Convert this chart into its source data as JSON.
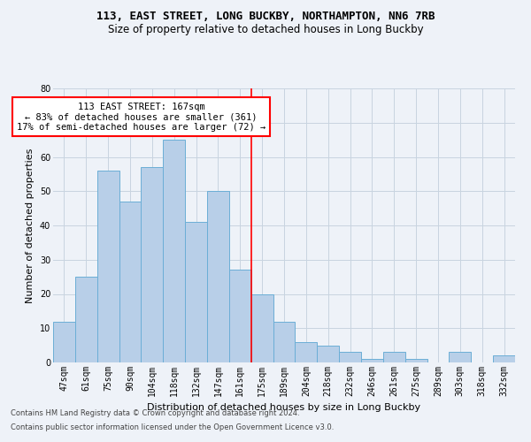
{
  "title1": "113, EAST STREET, LONG BUCKBY, NORTHAMPTON, NN6 7RB",
  "title2": "Size of property relative to detached houses in Long Buckby",
  "xlabel": "Distribution of detached houses by size in Long Buckby",
  "ylabel": "Number of detached properties",
  "categories": [
    "47sqm",
    "61sqm",
    "75sqm",
    "90sqm",
    "104sqm",
    "118sqm",
    "132sqm",
    "147sqm",
    "161sqm",
    "175sqm",
    "189sqm",
    "204sqm",
    "218sqm",
    "232sqm",
    "246sqm",
    "261sqm",
    "275sqm",
    "289sqm",
    "303sqm",
    "318sqm",
    "332sqm"
  ],
  "values": [
    12,
    25,
    56,
    47,
    57,
    65,
    41,
    50,
    27,
    20,
    12,
    6,
    5,
    3,
    1,
    3,
    1,
    0,
    3,
    0,
    2
  ],
  "bar_color": "#b8cfe8",
  "bar_edge_color": "#6baed6",
  "vline_x_index": 8,
  "vline_color": "red",
  "annotation_title": "113 EAST STREET: 167sqm",
  "annotation_line1": "← 83% of detached houses are smaller (361)",
  "annotation_line2": "17% of semi-detached houses are larger (72) →",
  "annotation_box_color": "white",
  "annotation_box_edgecolor": "red",
  "ylim": [
    0,
    80
  ],
  "yticks": [
    0,
    10,
    20,
    30,
    40,
    50,
    60,
    70,
    80
  ],
  "footer1": "Contains HM Land Registry data © Crown copyright and database right 2024.",
  "footer2": "Contains public sector information licensed under the Open Government Licence v3.0.",
  "bg_color": "#eef2f8",
  "grid_color": "#c8d4e0",
  "title1_fontsize": 9,
  "title2_fontsize": 8.5,
  "ylabel_fontsize": 8,
  "xlabel_fontsize": 8,
  "tick_fontsize": 7,
  "footer_fontsize": 6,
  "annot_fontsize": 7.5
}
